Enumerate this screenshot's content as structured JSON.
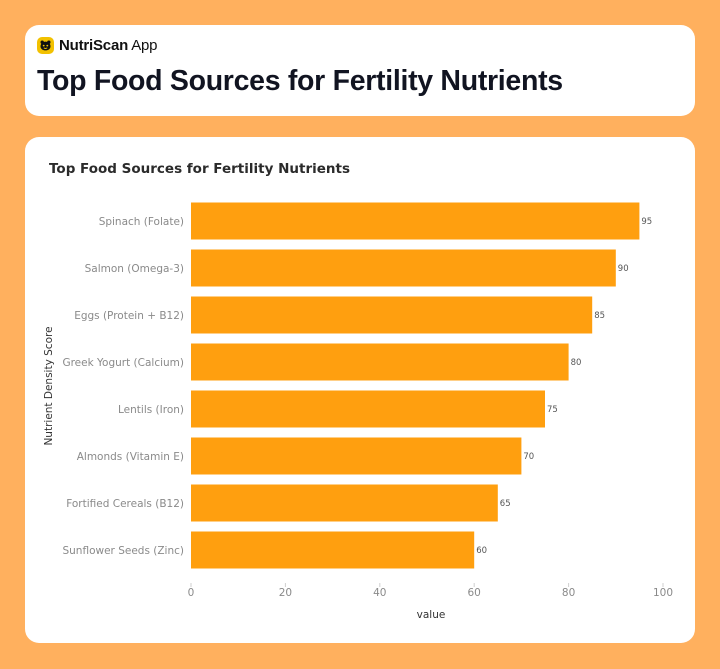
{
  "app": {
    "name_bold": "NutriScan",
    "name_rest": " App",
    "logo_icon": "nutriscan-logo-icon",
    "logo_color": "#F2C100"
  },
  "page": {
    "title": "Top Food Sources for Fertility Nutrients",
    "background": "#FFB05E"
  },
  "chart_data": {
    "type": "bar",
    "orientation": "horizontal",
    "title": "Top Food Sources for Fertility Nutrients",
    "xlabel": "value",
    "ylabel": "Nutrient Density Score",
    "categories": [
      "Spinach (Folate)",
      "Salmon (Omega-3)",
      "Eggs (Protein + B12)",
      "Greek Yogurt (Calcium)",
      "Lentils (Iron)",
      "Almonds (Vitamin E)",
      "Fortified Cereals (B12)",
      "Sunflower Seeds (Zinc)"
    ],
    "values": [
      95,
      90,
      85,
      80,
      75,
      70,
      65,
      60
    ],
    "xlim": [
      0,
      100
    ],
    "xticks": [
      0,
      20,
      40,
      60,
      80,
      100
    ],
    "data_labels": true,
    "grid": false,
    "bar_color": "#FF9F0F"
  }
}
